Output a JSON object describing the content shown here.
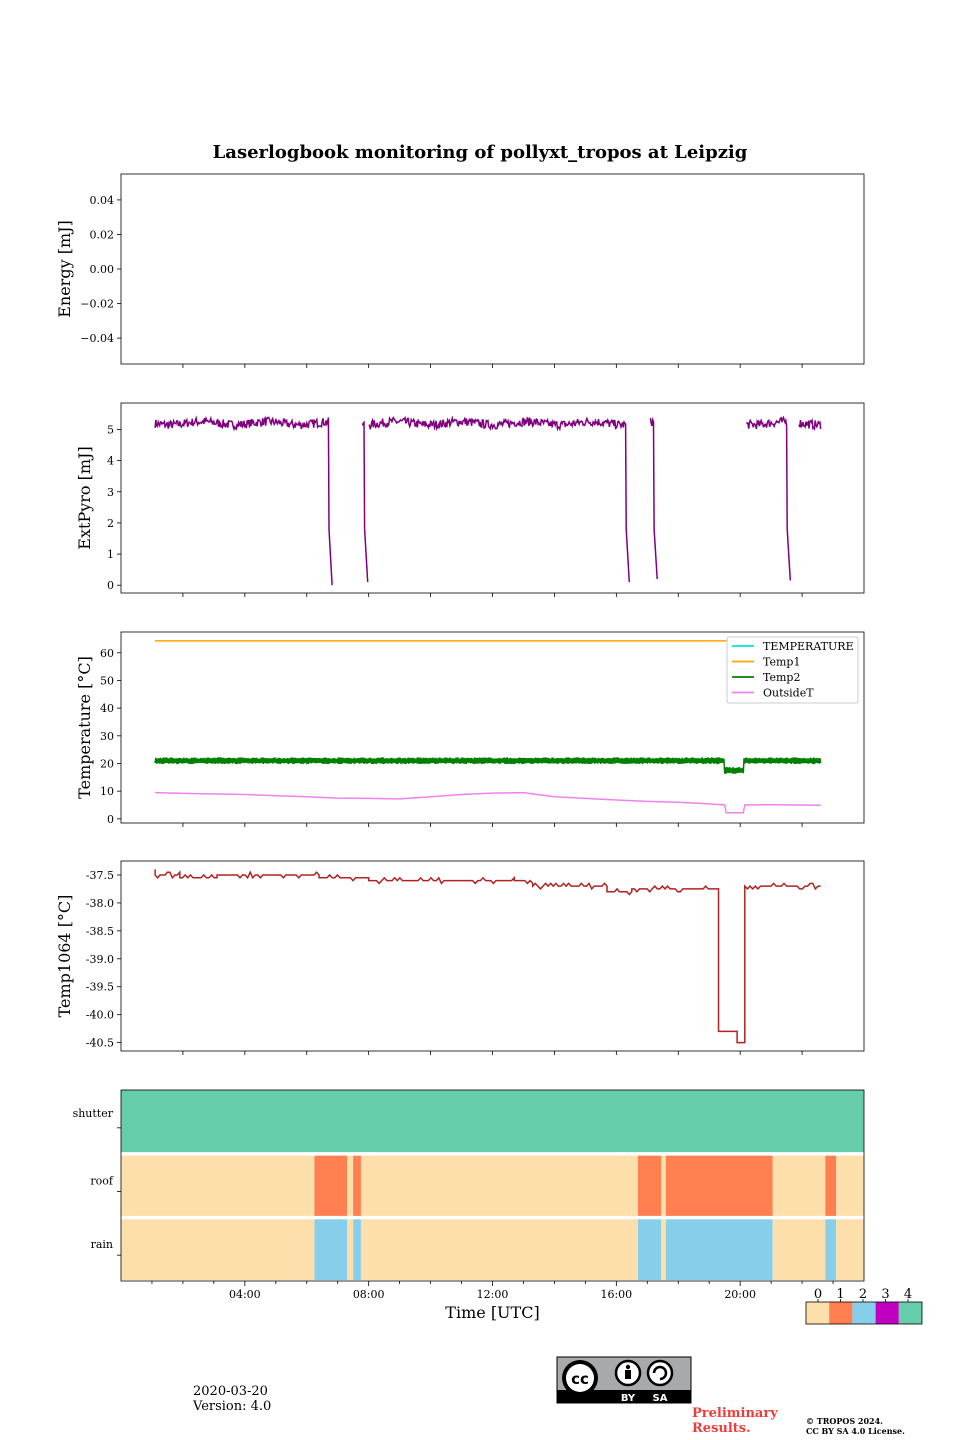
{
  "figure_title": "Laserlogbook monitoring of pollyxt_tropos at Leipzig",
  "footer": {
    "date": "2020-03-20",
    "version": "Version: 4.0",
    "preliminary": "Preliminary Results.",
    "copyright_line1": "© TROPOS 2024.",
    "copyright_line2": "CC BY SA 4.0 License.",
    "license_badge": [
      "cc",
      "BY",
      "SA"
    ]
  },
  "colors": {
    "energy": "#800080",
    "extpyro": "#800080",
    "temperature": "#00e5e5",
    "temp1": "#ffa500",
    "temp2": "#008000",
    "outsideT": "#ee82ee",
    "temp1064": "#b22222",
    "state0": "#fddfab",
    "state1": "#ff7f50",
    "state2": "#87ceeb",
    "state3": "#c000c0",
    "state4": "#66cdaa"
  },
  "chart_data": [
    {
      "type": "line",
      "id": "energy",
      "ylabel": "Energy [mJ]",
      "ylim": [
        -0.055,
        0.055
      ],
      "yticks": [
        -0.04,
        -0.02,
        0.0,
        0.02,
        0.04
      ],
      "ytick_labels": [
        "−0.04",
        "−0.02",
        "0.00",
        "0.02",
        "0.04"
      ],
      "xlim": [
        0,
        24
      ],
      "series": []
    },
    {
      "type": "line",
      "id": "extpyro",
      "ylabel": "ExtPyro [mJ]",
      "ylim": [
        -0.25,
        5.85
      ],
      "yticks": [
        0,
        1,
        2,
        3,
        4,
        5
      ],
      "ytick_labels": [
        "0",
        "1",
        "2",
        "3",
        "4",
        "5"
      ],
      "xlim": [
        0,
        24
      ],
      "series": [
        {
          "name": "ExtPyro",
          "mean": 5.2,
          "noise": 0.14,
          "segments": [
            {
              "start": 1.1,
              "end": 6.7,
              "drop_to": 0.0
            },
            {
              "start": 7.8,
              "end": 7.85,
              "drop_to": 0.1
            },
            {
              "start": 8.0,
              "end": 16.3,
              "drop_to": 0.1
            },
            {
              "start": 17.1,
              "end": 17.2,
              "drop_to": 0.2
            },
            {
              "start": 20.2,
              "end": 21.5,
              "drop_to": 0.15
            },
            {
              "start": 21.9,
              "end": 22.6,
              "drop_to": null
            }
          ]
        }
      ]
    },
    {
      "type": "line",
      "id": "temperature",
      "ylabel": "Temperature [°C]",
      "ylim": [
        -1.5,
        67.5
      ],
      "yticks": [
        0,
        10,
        20,
        30,
        40,
        50,
        60
      ],
      "ytick_labels": [
        "0",
        "10",
        "20",
        "30",
        "40",
        "50",
        "60"
      ],
      "xlim": [
        0,
        24
      ],
      "legend": [
        "TEMPERATURE",
        "Temp1",
        "Temp2",
        "OutsideT"
      ],
      "legend_position": "top-right",
      "series": [
        {
          "name": "TEMPERATURE",
          "x": [],
          "y": []
        },
        {
          "name": "Temp1",
          "x": [
            1.1,
            22.6
          ],
          "y": [
            64.3,
            64.3
          ]
        },
        {
          "name": "Temp2",
          "mean": 21,
          "noise": 1.2,
          "dip": {
            "start": 19.5,
            "end": 20.1,
            "value": 17.5
          },
          "xrange": [
            1.1,
            22.6
          ]
        },
        {
          "name": "OutsideT",
          "x": [
            1.1,
            2.0,
            4.0,
            6.0,
            7.0,
            8.0,
            9.0,
            10.0,
            11.0,
            12.0,
            13.0,
            14.0,
            15.0,
            16.0,
            17.0,
            18.0,
            19.0,
            19.5,
            19.55,
            20.1,
            20.15,
            21.0,
            22.0,
            22.6
          ],
          "y": [
            9.5,
            9.2,
            8.8,
            8.0,
            7.5,
            7.4,
            7.2,
            8.0,
            8.8,
            9.3,
            9.5,
            8.0,
            7.4,
            6.8,
            6.3,
            6.0,
            5.4,
            5.0,
            2.2,
            2.2,
            5.0,
            5.1,
            5.0,
            4.9
          ]
        }
      ]
    },
    {
      "type": "line",
      "id": "temp1064",
      "ylabel": "Temp1064 [°C]",
      "ylim": [
        -40.65,
        -37.25
      ],
      "yticks": [
        -40.5,
        -40.0,
        -39.5,
        -39.0,
        -38.5,
        -38.0,
        -37.5
      ],
      "ytick_labels": [
        "-40.5",
        "-40.0",
        "-39.5",
        "-39.0",
        "-38.5",
        "-38.0",
        "-37.5"
      ],
      "xlim": [
        0,
        24
      ],
      "series": [
        {
          "name": "Temp1064",
          "steps": [
            {
              "start": 1.1,
              "end": 1.9,
              "y": -37.5
            },
            {
              "start": 1.9,
              "end": 3.1,
              "y": -37.55
            },
            {
              "start": 3.1,
              "end": 6.4,
              "y": -37.5
            },
            {
              "start": 6.4,
              "end": 8.0,
              "y": -37.55
            },
            {
              "start": 8.0,
              "end": 12.7,
              "y": -37.6
            },
            {
              "start": 12.7,
              "end": 13.3,
              "y": -37.6
            },
            {
              "start": 13.3,
              "end": 15.7,
              "y": -37.7
            },
            {
              "start": 15.7,
              "end": 16.5,
              "y": -37.8
            },
            {
              "start": 16.5,
              "end": 19.3,
              "y": -37.75
            },
            {
              "start": 19.3,
              "end": 19.9,
              "y": -40.3
            },
            {
              "start": 19.9,
              "end": 20.15,
              "y": -40.5
            },
            {
              "start": 20.15,
              "end": 22.6,
              "y": -37.7
            }
          ]
        }
      ]
    },
    {
      "type": "heatmap",
      "id": "status",
      "rows": [
        "shutter",
        "roof",
        "rain"
      ],
      "xlabel": "Time [UTC]",
      "xlim": [
        0,
        24
      ],
      "xticks": [
        4,
        8,
        12,
        16,
        20
      ],
      "xtick_labels": [
        "04:00",
        "08:00",
        "12:00",
        "16:00",
        "20:00"
      ],
      "colorbar_ticks": [
        "0",
        "1",
        "2",
        "3",
        "4"
      ],
      "segments": {
        "shutter": [
          {
            "start": 0,
            "end": 24,
            "state": 4
          }
        ],
        "roof": [
          {
            "start": 0,
            "end": 6.25,
            "state": 0
          },
          {
            "start": 6.25,
            "end": 7.3,
            "state": 1
          },
          {
            "start": 7.3,
            "end": 7.5,
            "state": 0
          },
          {
            "start": 7.5,
            "end": 7.75,
            "state": 1
          },
          {
            "start": 7.75,
            "end": 16.7,
            "state": 0
          },
          {
            "start": 16.7,
            "end": 17.45,
            "state": 1
          },
          {
            "start": 17.45,
            "end": 17.6,
            "state": 0
          },
          {
            "start": 17.6,
            "end": 21.05,
            "state": 1
          },
          {
            "start": 21.05,
            "end": 22.75,
            "state": 0
          },
          {
            "start": 22.75,
            "end": 23.1,
            "state": 1
          },
          {
            "start": 23.1,
            "end": 24,
            "state": 0
          }
        ],
        "rain": [
          {
            "start": 0,
            "end": 6.25,
            "state": 0
          },
          {
            "start": 6.25,
            "end": 7.3,
            "state": 2
          },
          {
            "start": 7.3,
            "end": 7.5,
            "state": 0
          },
          {
            "start": 7.5,
            "end": 7.75,
            "state": 2
          },
          {
            "start": 7.75,
            "end": 16.7,
            "state": 0
          },
          {
            "start": 16.7,
            "end": 17.45,
            "state": 2
          },
          {
            "start": 17.45,
            "end": 17.6,
            "state": 0
          },
          {
            "start": 17.6,
            "end": 21.05,
            "state": 2
          },
          {
            "start": 21.05,
            "end": 22.75,
            "state": 0
          },
          {
            "start": 22.75,
            "end": 23.1,
            "state": 2
          },
          {
            "start": 23.1,
            "end": 24,
            "state": 0
          }
        ]
      }
    }
  ]
}
